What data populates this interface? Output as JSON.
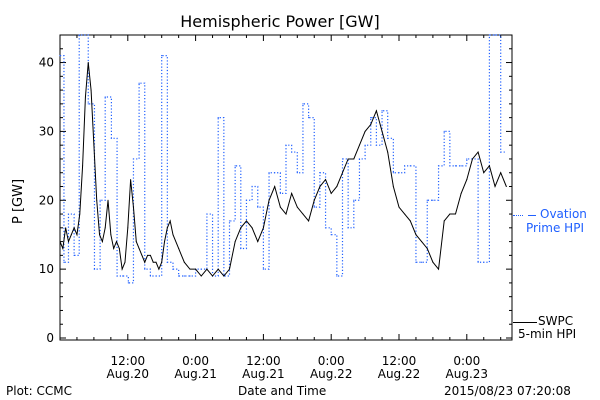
{
  "chart_data": {
    "type": "line",
    "title": "Hemispheric Power [GW]",
    "ylabel": "P [GW]",
    "xlabel": "Date and Time",
    "ylim": [
      0,
      44
    ],
    "xlim": [
      0,
      80
    ],
    "yticks": [
      0,
      10,
      20,
      30,
      40
    ],
    "xticks": [
      {
        "x": 12,
        "label1": "12:00",
        "label2": "Aug.20"
      },
      {
        "x": 24,
        "label1": "0:00",
        "label2": "Aug.21"
      },
      {
        "x": 36,
        "label1": "12:00",
        "label2": "Aug.21"
      },
      {
        "x": 48,
        "label1": "0:00",
        "label2": "Aug.22"
      },
      {
        "x": 60,
        "label1": "12:00",
        "label2": "Aug.22"
      },
      {
        "x": 72,
        "label1": "0:00",
        "label2": "Aug.23"
      }
    ],
    "series": [
      {
        "name": "Ovation Prime HPI",
        "color": "#2060ff",
        "style": "dotted-step",
        "x": [
          0,
          0.7,
          1.5,
          2.5,
          3.4,
          5.0,
          6.1,
          7.1,
          8.0,
          9.1,
          10.1,
          11.1,
          12.1,
          13.0,
          14.0,
          15.0,
          16.0,
          17.0,
          18.0,
          19.0,
          20.0,
          21.0,
          22.0,
          23.0,
          24.0,
          25.0,
          26.0,
          27.0,
          28.0,
          29.0,
          30.0,
          31.0,
          32.0,
          33.0,
          34.0,
          35.0,
          36.0,
          37.0,
          38.0,
          39.0,
          40.0,
          41.0,
          42.0,
          43.0,
          44.0,
          45.0,
          46.0,
          47.0,
          48.0,
          49.0,
          50.0,
          51.0,
          52.0,
          53.0,
          54.0,
          55.0,
          56.0,
          57.0,
          58.0,
          59.0,
          60.0,
          61.0,
          62.0,
          63.0,
          64.0,
          65.0,
          66.0,
          67.0,
          68.0,
          69.0,
          70.0,
          71.0,
          72.0,
          73.0,
          74.0,
          75.0,
          76.0,
          77.0,
          78.0
        ],
        "values": [
          41,
          11,
          18,
          12,
          44,
          34,
          10,
          20,
          35,
          29,
          9,
          9,
          8,
          26,
          37,
          10,
          9,
          9,
          41,
          11,
          10,
          9,
          9,
          9,
          10,
          10,
          18,
          9,
          32,
          9,
          17,
          25,
          13,
          20,
          22,
          19,
          10,
          24,
          24,
          21,
          28,
          27,
          24,
          34,
          32,
          19,
          24,
          16,
          15,
          9,
          26,
          16,
          20,
          26,
          28,
          32,
          28,
          33,
          29,
          24,
          24,
          25,
          25,
          11,
          11,
          20,
          20,
          25,
          30,
          25,
          25,
          25,
          26,
          26,
          11,
          11,
          44,
          44,
          27
        ],
        "approx": "step values approximate"
      },
      {
        "name": "SWPC 5-min HPI",
        "color": "#000000",
        "style": "line",
        "x": [
          0,
          0.5,
          1.0,
          1.5,
          2.0,
          2.5,
          3.0,
          3.5,
          4.0,
          4.5,
          5.0,
          5.5,
          6.0,
          6.5,
          7.0,
          7.5,
          8.0,
          8.5,
          9.0,
          9.5,
          10.0,
          10.5,
          11.0,
          11.5,
          12.0,
          12.5,
          13.0,
          13.5,
          14.0,
          14.5,
          15.0,
          15.5,
          16.0,
          16.5,
          17.0,
          17.5,
          18.0,
          18.5,
          19.0,
          19.5,
          20.0,
          21.0,
          22.0,
          23.0,
          24.0,
          25.0,
          26.0,
          27.0,
          28.0,
          29.0,
          30.0,
          31.0,
          32.0,
          33.0,
          34.0,
          35.0,
          36.0,
          37.0,
          38.0,
          39.0,
          40.0,
          41.0,
          42.0,
          43.0,
          44.0,
          45.0,
          46.0,
          47.0,
          48.0,
          49.0,
          50.0,
          51.0,
          52.0,
          53.0,
          54.0,
          55.0,
          56.0,
          57.0,
          58.0,
          59.0,
          60.0,
          61.0,
          62.0,
          63.0,
          64.0,
          65.0,
          66.0,
          67.0,
          68.0,
          69.0,
          70.0,
          71.0,
          72.0,
          73.0,
          74.0,
          75.0,
          76.0,
          77.0,
          78.0,
          79.0
        ],
        "values": [
          14,
          13,
          16,
          14,
          15,
          16,
          15,
          18,
          25,
          35,
          40,
          36,
          28,
          20,
          15,
          14,
          16,
          20,
          15,
          13,
          14,
          13,
          10,
          11,
          16,
          23,
          19,
          14,
          13,
          12,
          11,
          12,
          12,
          11,
          11,
          10,
          11,
          14,
          16,
          17,
          15,
          13,
          11,
          10,
          10,
          9,
          10,
          9,
          10,
          9,
          10,
          14,
          16,
          17,
          16,
          14,
          16,
          20,
          22,
          19,
          18,
          21,
          19,
          18,
          17,
          20,
          22,
          23,
          21,
          22,
          24,
          26,
          26,
          28,
          30,
          31,
          33,
          30,
          27,
          22,
          19,
          18,
          17,
          15,
          14,
          13,
          11,
          10,
          17,
          18,
          18,
          21,
          23,
          26,
          27,
          24,
          25,
          22,
          24,
          22
        ],
        "approx": "trace values approximate"
      }
    ],
    "legend": [
      {
        "line1": "Ovation",
        "line2": "Prime HPI",
        "color": "#2060ff"
      },
      {
        "line1": "SWPC",
        "line2": "5-min HPI",
        "color": "#000000"
      }
    ]
  },
  "footer": {
    "credit": "Plot: CCMC",
    "timestamp": "2015/08/23 07:20:08"
  }
}
